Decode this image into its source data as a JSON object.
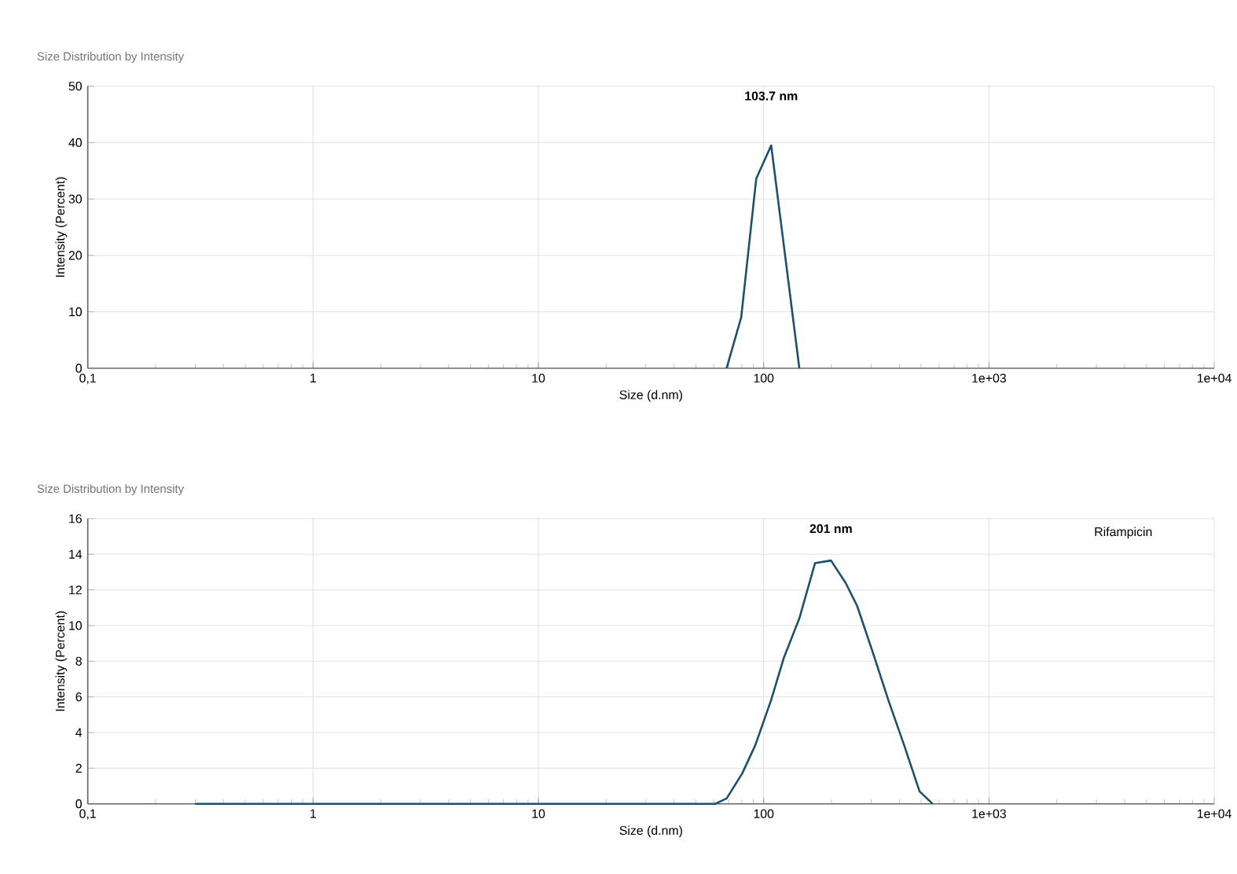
{
  "chart_data": [
    {
      "type": "line",
      "title": "Size Distribution by Intensity",
      "xlabel": "Size (d.nm)",
      "ylabel": "Intensity (Percent)",
      "log": "x",
      "grid": true,
      "color": "#1d4f6e",
      "x": [
        68.5,
        79.5,
        92.7,
        108,
        144
      ],
      "values": [
        0,
        9,
        33.6,
        39.5,
        0
      ],
      "xlim": [
        0.1,
        10000
      ],
      "ylim": [
        0,
        50
      ],
      "xticks": [
        {
          "value": 0.1,
          "label": "0,1"
        },
        1,
        10,
        100,
        {
          "value": 1000,
          "label": "1e+03"
        },
        {
          "value": 10000,
          "label": "1e+04"
        }
      ],
      "yticks": [
        0,
        10,
        20,
        30,
        40,
        50
      ],
      "annotations": [
        "103.7 nm"
      ]
    },
    {
      "type": "line",
      "title": "Size Distribution by Intensity",
      "xlabel": "Size (d.nm)",
      "ylabel": "Intensity (Percent)",
      "log": "x",
      "grid": true,
      "color": "#1d4f6e",
      "x": [
        0.3,
        61,
        68.5,
        80.3,
        91.9,
        107.8,
        123,
        144,
        169,
        199,
        231,
        260,
        305,
        358,
        420,
        492,
        562
      ],
      "values": [
        0,
        0,
        0.3,
        1.7,
        3.3,
        5.8,
        8.2,
        10.4,
        13.5,
        13.65,
        12.4,
        11.1,
        8.5,
        5.8,
        3.3,
        0.7,
        0
      ],
      "xlim": [
        0.1,
        10000
      ],
      "ylim": [
        0,
        16
      ],
      "xticks": [
        {
          "value": 0.1,
          "label": "0,1"
        },
        1,
        10,
        100,
        {
          "value": 1000,
          "label": "1e+03"
        },
        {
          "value": 10000,
          "label": "1e+04"
        }
      ],
      "yticks": [
        0,
        2,
        4,
        6,
        8,
        10,
        12,
        14,
        16
      ],
      "annotations": [
        "201 nm",
        "Rifampicin"
      ]
    }
  ]
}
